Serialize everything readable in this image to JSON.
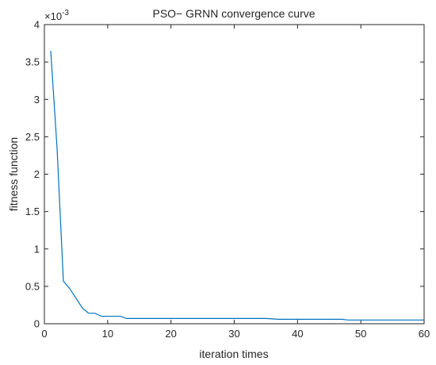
{
  "chart_data": {
    "type": "line",
    "title": "PSO− GRNN convergence curve",
    "xlabel": "iteration times",
    "ylabel": "fitness function",
    "y_exponent_label": "×10",
    "y_exponent": "-3",
    "xlim": [
      0,
      60
    ],
    "ylim": [
      0,
      4
    ],
    "xticks": [
      0,
      10,
      20,
      30,
      40,
      50,
      60
    ],
    "yticks": [
      0,
      0.5,
      1,
      1.5,
      2,
      2.5,
      3,
      3.5,
      4
    ],
    "xtick_labels": [
      "0",
      "10",
      "20",
      "30",
      "40",
      "50",
      "60"
    ],
    "ytick_labels": [
      "0",
      "0.5",
      "1",
      "1.5",
      "2",
      "2.5",
      "3",
      "3.5",
      "4"
    ],
    "grid": false,
    "line_color": "#0072BD",
    "axis_color": "#262626",
    "series": [
      {
        "x": [
          1,
          2,
          3,
          4,
          5,
          6,
          7,
          8,
          9,
          10,
          11,
          12,
          13,
          14,
          15,
          20,
          25,
          30,
          35,
          36,
          37,
          40,
          45,
          47,
          48,
          50,
          55,
          60
        ],
        "y": [
          3.65,
          2.35,
          0.57,
          0.47,
          0.34,
          0.21,
          0.14,
          0.14,
          0.1,
          0.1,
          0.1,
          0.1,
          0.07,
          0.07,
          0.07,
          0.07,
          0.07,
          0.07,
          0.07,
          0.065,
          0.06,
          0.06,
          0.06,
          0.06,
          0.05,
          0.05,
          0.05,
          0.05
        ]
      }
    ]
  }
}
